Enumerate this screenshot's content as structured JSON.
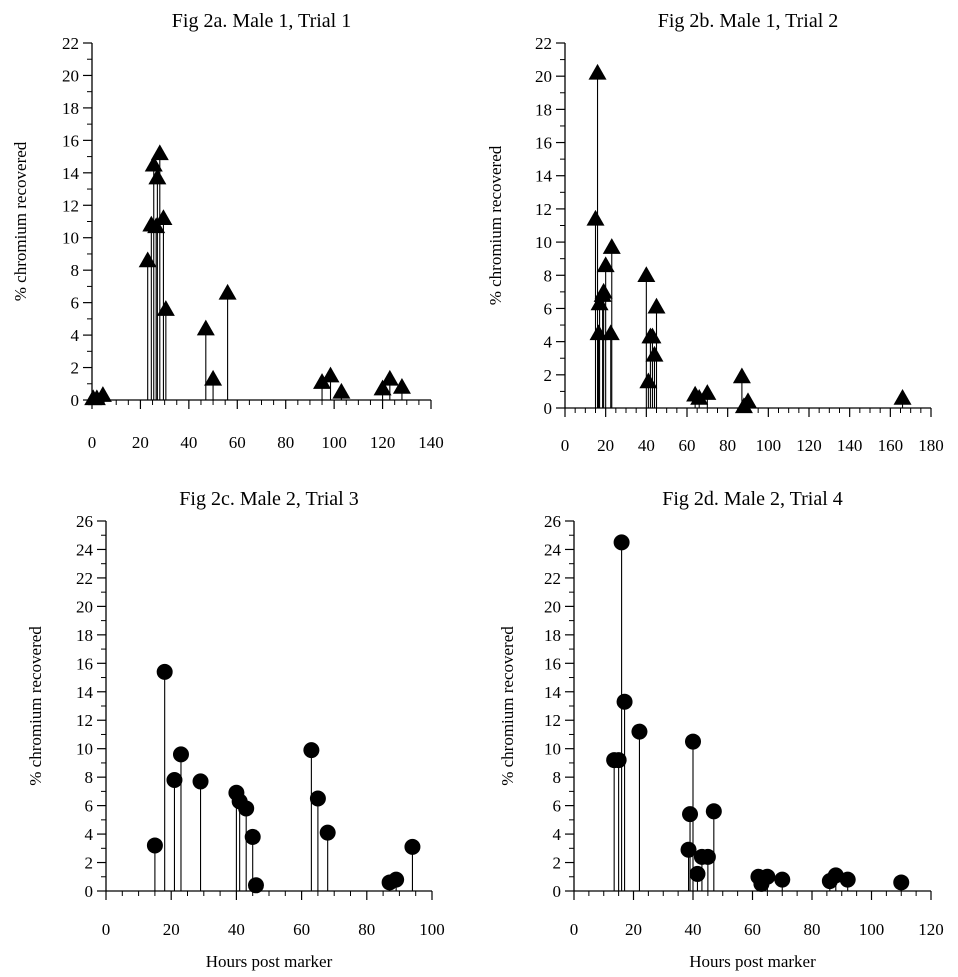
{
  "chart_data": [
    {
      "type": "scatter",
      "style": "stem",
      "marker": "triangle",
      "title": "Fig 2a.  Male 1, Trial 1",
      "xlabel": "",
      "ylabel": "% chromium recovered",
      "xlim": [
        0,
        140
      ],
      "ylim": [
        0,
        22
      ],
      "xticks": [
        "0",
        "20",
        "40",
        "60",
        "80",
        "100",
        "120",
        "140"
      ],
      "yticks": [
        "0",
        "2",
        "4",
        "6",
        "8",
        "10",
        "12",
        "14",
        "16",
        "18",
        "20",
        "22"
      ],
      "x": [
        0.5,
        2,
        4.5,
        23,
        24.5,
        25.5,
        26.5,
        27,
        28,
        29.5,
        30.5,
        47,
        50,
        56,
        95,
        98.5,
        103,
        120,
        123,
        128
      ],
      "y": [
        0.1,
        0.1,
        0.3,
        8.6,
        10.8,
        14.5,
        10.7,
        13.7,
        15.2,
        11.2,
        5.6,
        4.4,
        1.3,
        6.6,
        1.1,
        1.5,
        0.5,
        0.7,
        1.3,
        0.8
      ]
    },
    {
      "type": "scatter",
      "style": "stem",
      "marker": "triangle",
      "title": "Fig 2b.  Male 1, Trial 2",
      "xlabel": "",
      "ylabel": "% chromium recovered",
      "xlim": [
        0,
        180
      ],
      "ylim": [
        0,
        22
      ],
      "xticks": [
        "0",
        "20",
        "40",
        "60",
        "80",
        "100",
        "120",
        "140",
        "160",
        "180"
      ],
      "yticks": [
        "0",
        "2",
        "4",
        "6",
        "8",
        "10",
        "12",
        "14",
        "16",
        "18",
        "20",
        "22"
      ],
      "x": [
        15,
        16,
        16.5,
        17,
        18.5,
        19,
        20,
        22.5,
        23,
        40,
        41,
        42,
        43,
        44,
        45,
        64,
        66,
        70,
        87,
        88,
        90,
        166
      ],
      "y": [
        11.4,
        20.2,
        4.5,
        6.3,
        6.8,
        7.0,
        8.6,
        4.5,
        9.7,
        8.0,
        1.6,
        4.3,
        4.3,
        3.2,
        6.1,
        0.8,
        0.6,
        0.9,
        1.9,
        0.1,
        0.4,
        0.6
      ]
    },
    {
      "type": "scatter",
      "style": "stem",
      "marker": "circle",
      "title": "Fig 2c.  Male 2, Trial 3",
      "xlabel": "Hours post marker",
      "ylabel": "% chromium recovered",
      "xlim": [
        0,
        100
      ],
      "ylim": [
        0,
        26
      ],
      "xticks": [
        "0",
        "20",
        "40",
        "60",
        "80",
        "100"
      ],
      "yticks": [
        "0",
        "2",
        "4",
        "6",
        "8",
        "10",
        "12",
        "14",
        "16",
        "18",
        "20",
        "22",
        "24",
        "26"
      ],
      "x": [
        15,
        18,
        21,
        23,
        29,
        40,
        41,
        43,
        45,
        46,
        63,
        65,
        68,
        87,
        89,
        94
      ],
      "y": [
        3.2,
        15.4,
        7.8,
        9.6,
        7.7,
        6.9,
        6.3,
        5.8,
        3.8,
        0.4,
        9.9,
        6.5,
        4.1,
        0.6,
        0.8,
        3.1
      ]
    },
    {
      "type": "scatter",
      "style": "stem",
      "marker": "circle",
      "title": "Fig 2d.  Male 2, Trial 4",
      "xlabel": "Hours post marker",
      "ylabel": "% chromium recovered",
      "xlim": [
        0,
        120
      ],
      "ylim": [
        0,
        26
      ],
      "xticks": [
        "0",
        "20",
        "40",
        "60",
        "80",
        "100",
        "120"
      ],
      "yticks": [
        "0",
        "2",
        "4",
        "6",
        "8",
        "10",
        "12",
        "14",
        "16",
        "18",
        "20",
        "22",
        "24",
        "26"
      ],
      "x": [
        13.5,
        15,
        16,
        17,
        22,
        38.5,
        39,
        40,
        41.5,
        43,
        45,
        47,
        62,
        63,
        65,
        70,
        86,
        88,
        92,
        110
      ],
      "y": [
        9.2,
        9.2,
        24.5,
        13.3,
        11.2,
        2.9,
        5.4,
        10.5,
        1.2,
        2.4,
        2.4,
        5.6,
        1.0,
        0.5,
        1.0,
        0.8,
        0.7,
        1.1,
        0.8,
        0.6
      ]
    }
  ]
}
